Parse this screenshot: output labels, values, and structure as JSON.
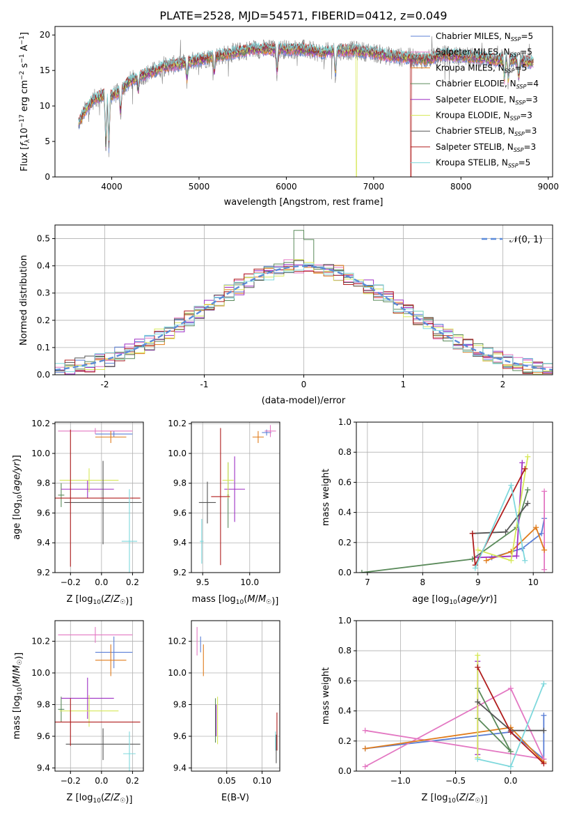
{
  "figure_title": "PLATE=2528, MJD=54571, FIBERID=0412, z=0.049",
  "colors": {
    "Chabrier MILES": "#5b7fd6",
    "Salpeter MILES": "#e377c2",
    "Kroupa MILES": "#e07b1a",
    "Chabrier ELODIE": "#5a8a5a",
    "Salpeter ELODIE": "#9d2fc4",
    "Kroupa ELODIE": "#d7e85a",
    "Chabrier STELIB": "#555555",
    "Salpeter STELIB": "#b01c1c",
    "Kroupa STELIB": "#7ed8dc"
  },
  "chart_data": [
    {
      "id": "spectrum",
      "type": "line",
      "title": "PLATE=2528, MJD=54571, FIBERID=0412, z=0.049",
      "xlabel": "wavelength [Angstrom, rest frame]",
      "ylabel": "Flux [f_λ 10^-17 erg cm^-2 s^-1 A^-1]",
      "xlim": [
        3350,
        9050
      ],
      "ylim": [
        0,
        21.2
      ],
      "xticks": [
        4000,
        5000,
        6000,
        7000,
        8000,
        9000
      ],
      "yticks": [
        0,
        5,
        10,
        15,
        20
      ],
      "legend_position": "right",
      "legend": [
        {
          "name": "Chabrier MILES",
          "label": "Chabrier MILES, N",
          "sub": "SSP",
          "tail": "=5"
        },
        {
          "name": "Salpeter MILES",
          "label": "Salpeter MILES, N",
          "sub": "SSP",
          "tail": "=5"
        },
        {
          "name": "Kroupa MILES",
          "label": "Kroupa MILES, N",
          "sub": "SSP",
          "tail": "=5"
        },
        {
          "name": "Chabrier ELODIE",
          "label": "Chabrier ELODIE, N",
          "sub": "SSP",
          "tail": "=4"
        },
        {
          "name": "Salpeter ELODIE",
          "label": "Salpeter ELODIE, N",
          "sub": "SSP",
          "tail": "=3"
        },
        {
          "name": "Kroupa ELODIE",
          "label": "Kroupa ELODIE, N",
          "sub": "SSP",
          "tail": "=3"
        },
        {
          "name": "Chabrier STELIB",
          "label": "Chabrier STELIB, N",
          "sub": "SSP",
          "tail": "=3"
        },
        {
          "name": "Salpeter STELIB",
          "label": "Salpeter STELIB, N",
          "sub": "SSP",
          "tail": "=3"
        },
        {
          "name": "Kroupa STELIB",
          "label": "Kroupa STELIB, N",
          "sub": "SSP",
          "tail": "=5"
        }
      ],
      "continuum": [
        [
          3620,
          7.5
        ],
        [
          3700,
          9.5
        ],
        [
          3800,
          11
        ],
        [
          3900,
          11.5
        ],
        [
          4000,
          11.5
        ],
        [
          4100,
          12
        ],
        [
          4200,
          13.5
        ],
        [
          4300,
          14
        ],
        [
          4400,
          14.5
        ],
        [
          4600,
          15.5
        ],
        [
          4800,
          16
        ],
        [
          5000,
          16.5
        ],
        [
          5200,
          17
        ],
        [
          5400,
          17.5
        ],
        [
          5600,
          18
        ],
        [
          5800,
          18
        ],
        [
          6000,
          18
        ],
        [
          6200,
          18
        ],
        [
          6400,
          17.5
        ],
        [
          6600,
          17.8
        ],
        [
          6800,
          17.8
        ],
        [
          7000,
          17.5
        ],
        [
          7200,
          17
        ],
        [
          7400,
          16.8
        ],
        [
          7600,
          16.5
        ],
        [
          7800,
          17.2
        ],
        [
          8000,
          17
        ],
        [
          8200,
          16.8
        ],
        [
          8400,
          16.5
        ],
        [
          8600,
          16.5
        ],
        [
          8800,
          16.2
        ]
      ],
      "absorption_features": [
        [
          3933,
          3.5
        ],
        [
          3968,
          3.5
        ],
        [
          4102,
          8.5
        ],
        [
          4304,
          12
        ],
        [
          4861,
          13.5
        ],
        [
          5175,
          14.5
        ],
        [
          5893,
          14.5
        ],
        [
          6563,
          14
        ],
        [
          8498,
          13.5
        ],
        [
          8542,
          13
        ],
        [
          8662,
          13.5
        ]
      ],
      "model_dropouts": [
        {
          "series": "Kroupa ELODIE",
          "x": 6800,
          "y_end": 0
        },
        {
          "series": "Salpeter STELIB",
          "x": 7420,
          "y_end": 0
        }
      ]
    },
    {
      "id": "residuals",
      "type": "histogram",
      "xlabel": "(data-model)/error",
      "ylabel": "Normed distribution",
      "xlim": [
        -2.5,
        2.5
      ],
      "ylim": [
        0,
        0.55
      ],
      "xticks": [
        -2,
        -1,
        0,
        1,
        2
      ],
      "yticks": [
        0.0,
        0.1,
        0.2,
        0.3,
        0.4,
        0.5
      ],
      "legend": [
        {
          "name": "N(0,1)",
          "label": "𝒩(0, 1)",
          "style": "dashed",
          "color": "#5b8bd9"
        }
      ],
      "reference_curve": "N(0,1) gaussian pdf"
    },
    {
      "id": "age_vs_Z",
      "type": "errorbar",
      "xlabel": "Z [log10(Z/Z☉)]",
      "ylabel": "age [log10(age/yr)]",
      "xlim": [
        -0.3,
        0.27
      ],
      "ylim": [
        9.2,
        10.21
      ],
      "xticks": [
        -0.2,
        0.0,
        0.2
      ],
      "yticks": [
        9.2,
        9.4,
        9.6,
        9.8,
        10.0,
        10.2
      ],
      "points": [
        {
          "series": "Chabrier MILES",
          "x": 0.08,
          "xerr": 0.12,
          "y": 10.13,
          "yerr": 0.02
        },
        {
          "series": "Salpeter MILES",
          "x": -0.04,
          "xerr": 0.24,
          "y": 10.15,
          "yerr": 0.02
        },
        {
          "series": "Kroupa MILES",
          "x": 0.06,
          "xerr": 0.1,
          "y": 10.11,
          "yerr": 0.04
        },
        {
          "series": "Chabrier ELODIE",
          "x": -0.26,
          "xerr": 0.02,
          "y": 9.72,
          "yerr": 0.08
        },
        {
          "series": "Salpeter ELODIE",
          "x": -0.09,
          "xerr": 0.17,
          "y": 9.76,
          "yerr": 0.06
        },
        {
          "series": "Kroupa ELODIE",
          "x": -0.08,
          "xerr": 0.19,
          "y": 9.82,
          "yerr": 0.08
        },
        {
          "series": "Chabrier STELIB",
          "x": 0.01,
          "xerr": 0.25,
          "y": 9.67,
          "yerr": 0.28
        },
        {
          "series": "Salpeter STELIB",
          "x": -0.2,
          "xerr": 0.45,
          "y": 9.7,
          "yerr": 0.46
        },
        {
          "series": "Kroupa STELIB",
          "x": 0.18,
          "xerr": 0.05,
          "y": 9.41,
          "yerr": 0.35
        }
      ]
    },
    {
      "id": "age_vs_mass",
      "type": "errorbar",
      "xlabel": "mass [log10(M/M☉)]",
      "xlim": [
        9.38,
        10.32
      ],
      "ylim": [
        9.2,
        10.21
      ],
      "xticks": [
        9.5,
        10.0
      ],
      "yticks": [
        9.2,
        9.4,
        9.6,
        9.8,
        10.0,
        10.2
      ],
      "points": [
        {
          "series": "Chabrier MILES",
          "x": 10.18,
          "xerr": 0.05,
          "y": 10.14,
          "yerr": 0.02
        },
        {
          "series": "Salpeter MILES",
          "x": 10.22,
          "xerr": 0.06,
          "y": 10.15,
          "yerr": 0.04
        },
        {
          "series": "Kroupa MILES",
          "x": 10.09,
          "xerr": 0.06,
          "y": 10.11,
          "yerr": 0.04
        },
        {
          "series": "Chabrier ELODIE",
          "x": 9.77,
          "xerr": 0.01,
          "y": 9.72,
          "yerr": 0.22
        },
        {
          "series": "Salpeter ELODIE",
          "x": 9.84,
          "xerr": 0.11,
          "y": 9.76,
          "yerr": 0.22
        },
        {
          "series": "Kroupa ELODIE",
          "x": 9.77,
          "xerr": 0.06,
          "y": 9.82,
          "yerr": 0.12
        },
        {
          "series": "Chabrier STELIB",
          "x": 9.55,
          "xerr": 0.09,
          "y": 9.67,
          "yerr": 0.14
        },
        {
          "series": "Salpeter STELIB",
          "x": 9.69,
          "xerr": 0.1,
          "y": 9.71,
          "yerr": 0.46
        },
        {
          "series": "Kroupa STELIB",
          "x": 9.49,
          "xerr": 0.02,
          "y": 9.41,
          "yerr": 0.15
        }
      ]
    },
    {
      "id": "weight_vs_age",
      "type": "line",
      "xlabel": "age [log10(age/yr)]",
      "ylabel": "mass weight",
      "xlim": [
        6.8,
        10.35
      ],
      "ylim": [
        0,
        1
      ],
      "xticks": [
        7,
        8,
        9,
        10
      ],
      "yticks": [
        0.0,
        0.2,
        0.4,
        0.6,
        0.8,
        1.0
      ],
      "series": [
        {
          "name": "Chabrier MILES",
          "points": [
            [
              9.25,
              0.1
            ],
            [
              9.8,
              0.16
            ],
            [
              10.15,
              0.26
            ],
            [
              10.2,
              0.36
            ]
          ]
        },
        {
          "name": "Salpeter MILES",
          "points": [
            [
              10.2,
              0.02
            ],
            [
              10.2,
              0.54
            ]
          ]
        },
        {
          "name": "Kroupa MILES",
          "points": [
            [
              9.15,
              0.08
            ],
            [
              9.6,
              0.14
            ],
            [
              10.05,
              0.3
            ],
            [
              10.2,
              0.15
            ]
          ]
        },
        {
          "name": "Chabrier ELODIE",
          "points": [
            [
              6.9,
              0.0
            ],
            [
              8.9,
              0.09
            ],
            [
              9.7,
              0.3
            ],
            [
              9.9,
              0.55
            ]
          ]
        },
        {
          "name": "Salpeter ELODIE",
          "points": [
            [
              9.0,
              0.1
            ],
            [
              9.7,
              0.11
            ],
            [
              9.8,
              0.73
            ]
          ]
        },
        {
          "name": "Kroupa ELODIE",
          "points": [
            [
              9.0,
              0.15
            ],
            [
              9.6,
              0.08
            ],
            [
              9.9,
              0.77
            ]
          ]
        },
        {
          "name": "Chabrier STELIB",
          "points": [
            [
              8.9,
              0.26
            ],
            [
              9.5,
              0.27
            ],
            [
              9.9,
              0.46
            ]
          ]
        },
        {
          "name": "Salpeter STELIB",
          "points": [
            [
              8.9,
              0.26
            ],
            [
              8.95,
              0.05
            ],
            [
              9.85,
              0.69
            ]
          ]
        },
        {
          "name": "Kroupa STELIB",
          "points": [
            [
              8.95,
              0.03
            ],
            [
              9.6,
              0.58
            ],
            [
              9.85,
              0.08
            ]
          ]
        }
      ]
    },
    {
      "id": "mass_vs_Z",
      "type": "errorbar",
      "xlabel": "Z [log10(Z/Z☉)]",
      "ylabel": "mass [log10(M/M☉)]",
      "xlim": [
        -0.3,
        0.27
      ],
      "ylim": [
        9.38,
        10.33
      ],
      "xticks": [
        -0.2,
        0.0,
        0.2
      ],
      "yticks": [
        9.4,
        9.6,
        9.8,
        10.0,
        10.2
      ],
      "points": [
        {
          "series": "Chabrier MILES",
          "x": 0.08,
          "xerr": 0.12,
          "y": 10.13,
          "yerr": 0.1
        },
        {
          "series": "Salpeter MILES",
          "x": -0.04,
          "xerr": 0.24,
          "y": 10.24,
          "yerr": 0.05
        },
        {
          "series": "Kroupa MILES",
          "x": 0.06,
          "xerr": 0.1,
          "y": 10.08,
          "yerr": 0.1
        },
        {
          "series": "Chabrier ELODIE",
          "x": -0.26,
          "xerr": 0.02,
          "y": 9.77,
          "yerr": 0.08
        },
        {
          "series": "Salpeter ELODIE",
          "x": -0.09,
          "xerr": 0.17,
          "y": 9.84,
          "yerr": 0.13
        },
        {
          "series": "Kroupa ELODIE",
          "x": -0.08,
          "xerr": 0.19,
          "y": 9.76,
          "yerr": 0.1
        },
        {
          "series": "Chabrier STELIB",
          "x": 0.01,
          "xerr": 0.24,
          "y": 9.55,
          "yerr": 0.1
        },
        {
          "series": "Salpeter STELIB",
          "x": -0.2,
          "xerr": 0.45,
          "y": 9.69,
          "yerr": 0.15
        },
        {
          "series": "Kroupa STELIB",
          "x": 0.18,
          "xerr": 0.04,
          "y": 9.49,
          "yerr": 0.14
        }
      ]
    },
    {
      "id": "mass_vs_ebv",
      "type": "errorbar",
      "xlabel": "E(B-V)",
      "xlim": [
        0.0,
        0.125
      ],
      "ylim": [
        9.38,
        10.33
      ],
      "xticks": [
        0.05,
        0.1
      ],
      "yticks": [
        9.4,
        9.6,
        9.8,
        10.0,
        10.2
      ],
      "points": [
        {
          "series": "Chabrier MILES",
          "x": 0.013,
          "y": 10.18,
          "yerr": 0.05
        },
        {
          "series": "Salpeter MILES",
          "x": 0.008,
          "y": 10.2,
          "yerr": 0.09
        },
        {
          "series": "Kroupa MILES",
          "x": 0.017,
          "y": 10.08,
          "yerr": 0.1
        },
        {
          "series": "Chabrier ELODIE",
          "x": 0.034,
          "y": 9.7,
          "yerr": 0.14
        },
        {
          "series": "Salpeter ELODIE",
          "x": 0.035,
          "y": 9.7,
          "yerr": 0.1
        },
        {
          "series": "Kroupa ELODIE",
          "x": 0.037,
          "y": 9.7,
          "yerr": 0.15
        },
        {
          "series": "Chabrier STELIB",
          "x": 0.12,
          "y": 9.52,
          "yerr": 0.09
        },
        {
          "series": "Salpeter STELIB",
          "x": 0.121,
          "y": 9.63,
          "yerr": 0.12
        },
        {
          "series": "Kroupa STELIB",
          "x": 0.119,
          "y": 9.57,
          "yerr": 0.06
        }
      ]
    },
    {
      "id": "weight_vs_Z",
      "type": "line",
      "xlabel": "Z [log10(Z/Z☉)]",
      "ylabel": "mass weight",
      "xlim": [
        -1.4,
        0.38
      ],
      "ylim": [
        0,
        1
      ],
      "xticks": [
        -1.0,
        -0.5,
        0.0
      ],
      "yticks": [
        0.0,
        0.2,
        0.4,
        0.6,
        0.8,
        1.0
      ],
      "series": [
        {
          "name": "Chabrier MILES",
          "points": [
            [
              -1.32,
              0.15
            ],
            [
              0.0,
              0.26
            ],
            [
              0.3,
              0.08
            ],
            [
              0.3,
              0.37
            ]
          ]
        },
        {
          "name": "Salpeter MILES",
          "points": [
            [
              -1.32,
              0.03
            ],
            [
              0.0,
              0.55
            ],
            [
              0.3,
              0.08
            ],
            [
              -1.32,
              0.27
            ]
          ]
        },
        {
          "name": "Kroupa MILES",
          "points": [
            [
              -1.32,
              0.15
            ],
            [
              0.0,
              0.29
            ],
            [
              0.3,
              0.06
            ]
          ]
        },
        {
          "name": "Chabrier ELODIE",
          "points": [
            [
              -0.3,
              0.55
            ],
            [
              0.0,
              0.13
            ],
            [
              -0.3,
              0.35
            ]
          ]
        },
        {
          "name": "Salpeter ELODIE",
          "points": [
            [
              -0.3,
              0.73
            ],
            [
              -0.3,
              0.11
            ]
          ]
        },
        {
          "name": "Kroupa ELODIE",
          "points": [
            [
              -0.3,
              0.77
            ],
            [
              -0.3,
              0.09
            ]
          ]
        },
        {
          "name": "Chabrier STELIB",
          "points": [
            [
              -0.3,
              0.46
            ],
            [
              0.0,
              0.27
            ],
            [
              0.3,
              0.27
            ]
          ]
        },
        {
          "name": "Salpeter STELIB",
          "points": [
            [
              -0.3,
              0.69
            ],
            [
              0.0,
              0.26
            ],
            [
              0.3,
              0.05
            ]
          ]
        },
        {
          "name": "Kroupa STELIB",
          "points": [
            [
              -0.3,
              0.08
            ],
            [
              0.0,
              0.03
            ],
            [
              0.3,
              0.58
            ]
          ]
        }
      ]
    }
  ],
  "panel_labels": {
    "ages_y": "age  [log",
    "mass_x": "mass [log",
    "mass_y": "mass [log",
    "z_x": "Z [log",
    "ebv_x": "E(B-V)",
    "age_x": "age  [log",
    "weight_y": "mass weight"
  }
}
